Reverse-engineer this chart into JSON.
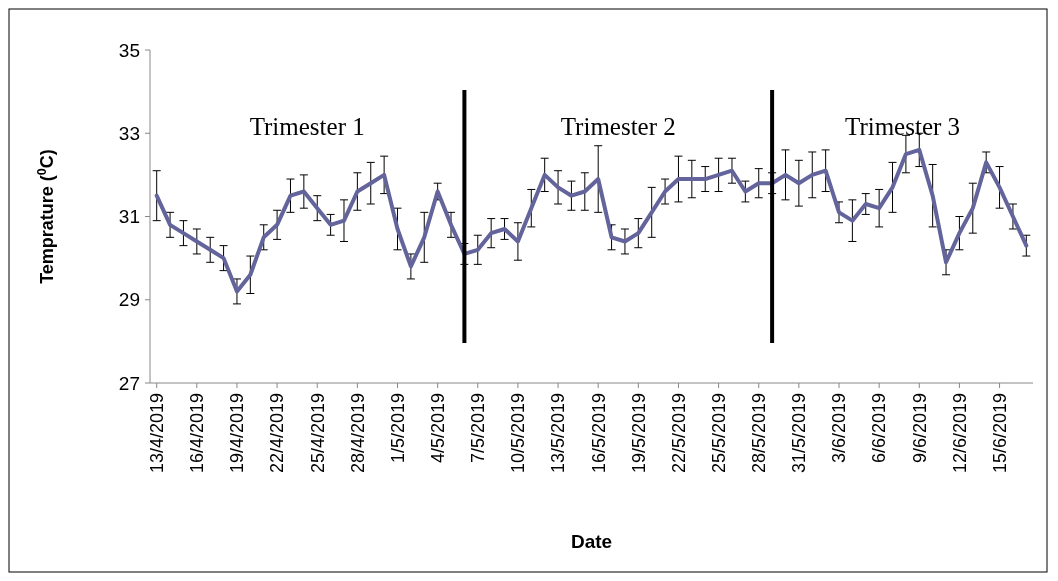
{
  "chart_data": {
    "type": "line",
    "xlabel": "Date",
    "ylabel": "Temprature ($^{0}$C)",
    "x": [
      "2019-04-13",
      "2019-04-14",
      "2019-04-15",
      "2019-04-16",
      "2019-04-17",
      "2019-04-18",
      "2019-04-19",
      "2019-04-20",
      "2019-04-21",
      "2019-04-22",
      "2019-04-23",
      "2019-04-24",
      "2019-04-25",
      "2019-04-26",
      "2019-04-27",
      "2019-04-28",
      "2019-04-29",
      "2019-04-30",
      "2019-05-01",
      "2019-05-02",
      "2019-05-03",
      "2019-05-04",
      "2019-05-05",
      "2019-05-06",
      "2019-05-07",
      "2019-05-08",
      "2019-05-09",
      "2019-05-10",
      "2019-05-11",
      "2019-05-12",
      "2019-05-13",
      "2019-05-14",
      "2019-05-15",
      "2019-05-16",
      "2019-05-17",
      "2019-05-18",
      "2019-05-19",
      "2019-05-20",
      "2019-05-21",
      "2019-05-22",
      "2019-05-23",
      "2019-05-24",
      "2019-05-25",
      "2019-05-26",
      "2019-05-27",
      "2019-05-28",
      "2019-05-29",
      "2019-05-30",
      "2019-05-31",
      "2019-06-01",
      "2019-06-02",
      "2019-06-03",
      "2019-06-04",
      "2019-06-05",
      "2019-06-06",
      "2019-06-07",
      "2019-06-08",
      "2019-06-09",
      "2019-06-10",
      "2019-06-11",
      "2019-06-12",
      "2019-06-13",
      "2019-06-14",
      "2019-06-15",
      "2019-06-16",
      "2019-06-17"
    ],
    "series": [
      {
        "color": "#64649c",
        "line_style": "solid",
        "marker": "none",
        "values": [
          31.5,
          30.8,
          30.6,
          30.4,
          30.2,
          30.0,
          29.2,
          29.6,
          30.5,
          30.8,
          31.5,
          31.6,
          31.2,
          30.8,
          30.9,
          31.6,
          31.8,
          32.0,
          30.7,
          29.8,
          30.5,
          31.6,
          30.8,
          30.1,
          30.2,
          30.6,
          30.7,
          30.4,
          31.2,
          32.0,
          31.7,
          31.5,
          31.6,
          31.9,
          30.5,
          30.4,
          30.6,
          31.1,
          31.6,
          31.9,
          31.9,
          31.9,
          32.0,
          32.1,
          31.6,
          31.8,
          31.8,
          32.0,
          31.8,
          32.0,
          32.1,
          31.1,
          30.9,
          31.3,
          31.2,
          31.7,
          32.5,
          32.6,
          31.5,
          29.9,
          30.6,
          31.2,
          32.3,
          31.7,
          31.0,
          30.3
        ],
        "errors": [
          0.6,
          0.3,
          0.3,
          0.3,
          0.3,
          0.3,
          0.3,
          0.45,
          0.3,
          0.35,
          0.4,
          0.4,
          0.3,
          0.25,
          0.5,
          0.45,
          0.5,
          0.45,
          0.5,
          0.3,
          0.6,
          0.2,
          0.3,
          0.25,
          0.35,
          0.35,
          0.25,
          0.45,
          0.45,
          0.4,
          0.4,
          0.35,
          0.45,
          0.8,
          0.3,
          0.3,
          0.35,
          0.6,
          0.3,
          0.55,
          0.45,
          0.3,
          0.4,
          0.3,
          0.25,
          0.35,
          0.25,
          0.6,
          0.55,
          0.55,
          0.5,
          0.25,
          0.5,
          0.25,
          0.45,
          0.6,
          0.45,
          0.4,
          0.75,
          0.3,
          0.4,
          0.6,
          0.25,
          0.5,
          0.3,
          0.25
        ]
      }
    ],
    "xlim": [
      "2019-04-12T12:00",
      "2019-06-17T12:00"
    ],
    "xticks": [
      {
        "value": "2019-04-13",
        "label": "13/4/2019"
      },
      {
        "value": "2019-04-16",
        "label": "16/4/2019"
      },
      {
        "value": "2019-04-19",
        "label": "19/4/2019"
      },
      {
        "value": "2019-04-22",
        "label": "22/4/2019"
      },
      {
        "value": "2019-04-25",
        "label": "25/4/2019"
      },
      {
        "value": "2019-04-28",
        "label": "28/4/2019"
      },
      {
        "value": "2019-05-01",
        "label": "1/5/2019"
      },
      {
        "value": "2019-05-04",
        "label": "4/5/2019"
      },
      {
        "value": "2019-05-07",
        "label": "7/5/2019"
      },
      {
        "value": "2019-05-10",
        "label": "10/5/2019"
      },
      {
        "value": "2019-05-13",
        "label": "13/5/2019"
      },
      {
        "value": "2019-05-16",
        "label": "16/5/2019"
      },
      {
        "value": "2019-05-19",
        "label": "19/5/2019"
      },
      {
        "value": "2019-05-22",
        "label": "22/5/2019"
      },
      {
        "value": "2019-05-25",
        "label": "25/5/2019"
      },
      {
        "value": "2019-05-28",
        "label": "28/5/2019"
      },
      {
        "value": "2019-05-31",
        "label": "31/5/2019"
      },
      {
        "value": "2019-06-03",
        "label": "3/6/2019"
      },
      {
        "value": "2019-06-06",
        "label": "6/6/2019"
      },
      {
        "value": "2019-06-09",
        "label": "9/6/2019"
      },
      {
        "value": "2019-06-12",
        "label": "12/6/2019"
      },
      {
        "value": "2019-06-15",
        "label": "15/6/2019"
      }
    ],
    "ylim": [
      27,
      35
    ],
    "yticks": [
      27,
      29,
      31,
      33,
      35
    ],
    "grid": false,
    "ref_lines": [
      {
        "axis": "x",
        "value": "2019-05-06",
        "color": "#000000"
      },
      {
        "axis": "x",
        "value": "2019-05-29",
        "color": "#000000"
      }
    ],
    "annotations": [
      "Trimester 1",
      "Trimester 2",
      "Trimester 3"
    ]
  }
}
